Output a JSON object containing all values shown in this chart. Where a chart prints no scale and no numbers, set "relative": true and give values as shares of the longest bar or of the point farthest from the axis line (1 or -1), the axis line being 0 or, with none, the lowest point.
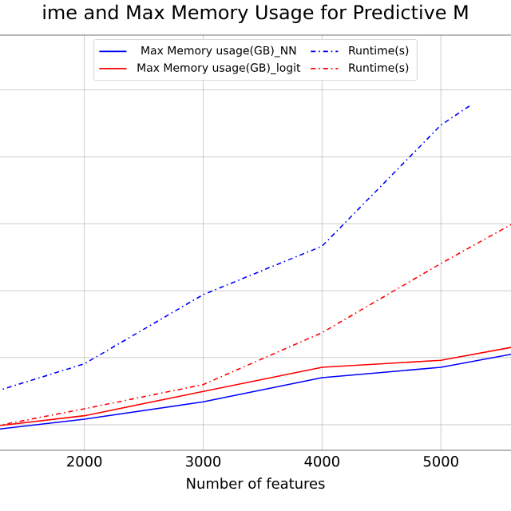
{
  "chart_data": {
    "type": "line",
    "title": "ime and Max Memory Usage for Predictive M",
    "xlabel": "Number of features",
    "relative": true,
    "xlim": [
      1250,
      5630
    ],
    "xticks": [
      2000,
      3000,
      4000,
      5000
    ],
    "tick_labels": "x",
    "grid": true,
    "legend": "top",
    "series": [
      {
        "name": "Max Memory usage(GB)_NN",
        "color": "#0000ff",
        "line_style": "solid",
        "x": [
          1250,
          2000,
          3000,
          4000,
          5000,
          5630
        ],
        "values": [
          0.06,
          0.09,
          0.14,
          0.21,
          0.24,
          0.28
        ]
      },
      {
        "name": "Max Memory usage(GB)_logit",
        "color": "#ff0000",
        "line_style": "solid",
        "x": [
          1250,
          2000,
          3000,
          4000,
          5000,
          5630
        ],
        "values": [
          0.07,
          0.1,
          0.17,
          0.24,
          0.26,
          0.3
        ]
      },
      {
        "name": "Runtime(s)",
        "color": "#0000ff",
        "line_style": "dashdot",
        "x": [
          1250,
          2000,
          3000,
          4000,
          5000,
          5260
        ],
        "values": [
          0.17,
          0.25,
          0.45,
          0.59,
          0.94,
          1.0
        ]
      },
      {
        "name": "Runtime(s)",
        "color": "#ff0000",
        "line_style": "dashdot",
        "x": [
          1250,
          2000,
          3000,
          4000,
          5000,
          5630
        ],
        "values": [
          0.07,
          0.12,
          0.19,
          0.34,
          0.54,
          0.66
        ]
      }
    ]
  }
}
